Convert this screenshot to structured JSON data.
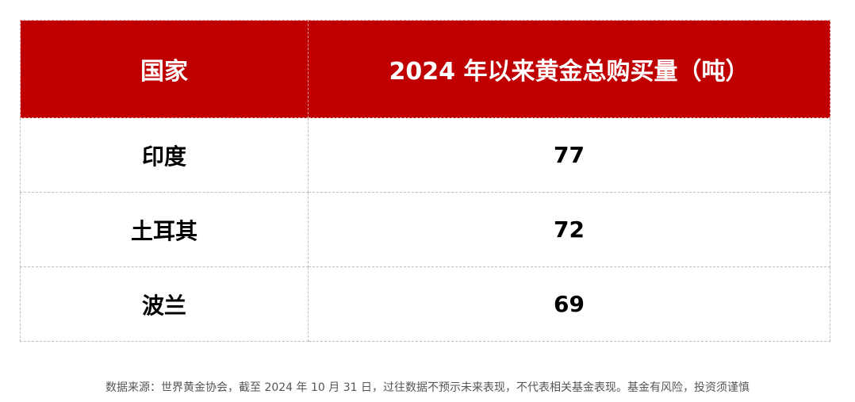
{
  "table": {
    "header": [
      "国家",
      "2024 年以来黄金总购买量（吨）"
    ],
    "rows": [
      [
        "印度",
        "77"
      ],
      [
        "土耳其",
        "72"
      ],
      [
        "波兰",
        "69"
      ]
    ]
  },
  "footer": {
    "note": "数据来源：世界黄金协会，截至 2024 年 10 月 31 日，过往数据不预示未来表现，不代表相关基金表现。基金有风险，投资须谨慎"
  }
}
